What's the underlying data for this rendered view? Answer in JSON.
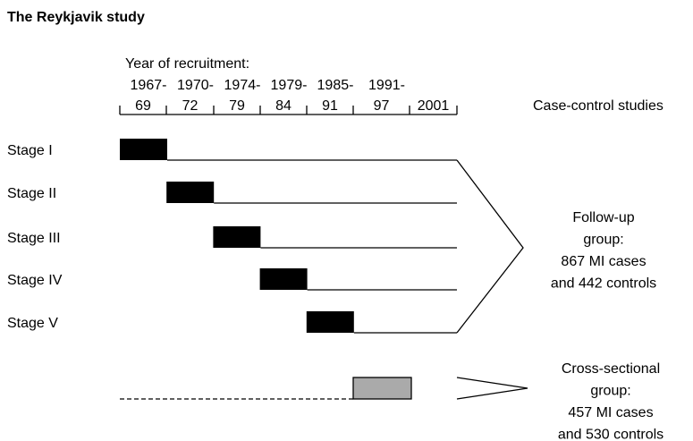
{
  "header": {
    "title": "The Reykjavik study"
  },
  "timeline": {
    "label": "Year of recruitment:",
    "start_labels": [
      "1967-",
      "1970-",
      "1974-",
      "1979-",
      "1985-",
      "1991-"
    ],
    "end_labels": [
      "69",
      "72",
      "79",
      "84",
      "91",
      "97",
      "2001"
    ],
    "right_label": "Case-control studies"
  },
  "stages": [
    "Stage I",
    "Stage II",
    "Stage III",
    "Stage IV",
    "Stage V"
  ],
  "follow_up": {
    "lines": [
      "Follow-up",
      "group:",
      "867 MI cases",
      "and 442 controls"
    ]
  },
  "cross_sectional": {
    "lines": [
      "Cross-sectional",
      "group:",
      "457 MI cases",
      "and 530 controls"
    ]
  }
}
